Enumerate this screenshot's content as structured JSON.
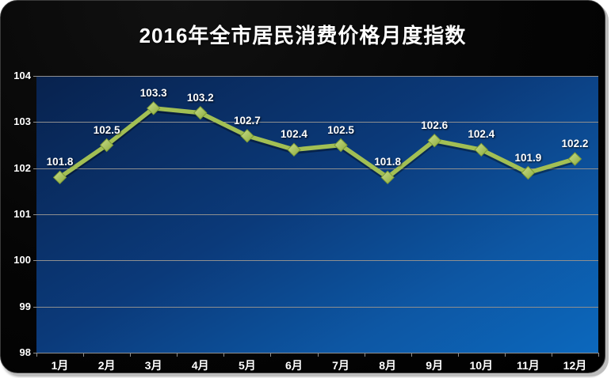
{
  "widget": {
    "title": "2016年全市居民消费价格月度指数"
  },
  "chart_data": {
    "type": "line",
    "title": "2016年全市居民消费价格月度指数",
    "categories": [
      "1月",
      "2月",
      "3月",
      "4月",
      "5月",
      "6月",
      "7月",
      "8月",
      "9月",
      "10月",
      "11月",
      "12月"
    ],
    "values": [
      101.8,
      102.5,
      103.3,
      103.2,
      102.7,
      102.4,
      102.5,
      101.8,
      102.6,
      102.4,
      101.9,
      102.2
    ],
    "data_labels": [
      "101.8",
      "102.5",
      "103.3",
      "103.2",
      "102.7",
      "102.4",
      "102.5",
      "101.8",
      "102.6",
      "102.4",
      "101.9",
      "102.2"
    ],
    "xlabel": "",
    "ylabel": "",
    "ylim": [
      98,
      104
    ],
    "ytick_step": 1,
    "yticks": [
      "98",
      "99",
      "100",
      "101",
      "102",
      "103",
      "104"
    ],
    "grid": true,
    "legend": "none",
    "marker": "diamond"
  },
  "colors": {
    "widget_background": "#050505",
    "plot_gradient_top": "#08224e",
    "plot_gradient_bottom": "#0c68bd",
    "gridline": "#8f8f8f",
    "line": "#a2bf54",
    "marker_light": "#c9de8a",
    "marker_dark": "#8cab3d",
    "marker_edge": "#7d9a35",
    "text": "#ffffff",
    "edge_highlight": "#bdbdbd"
  }
}
